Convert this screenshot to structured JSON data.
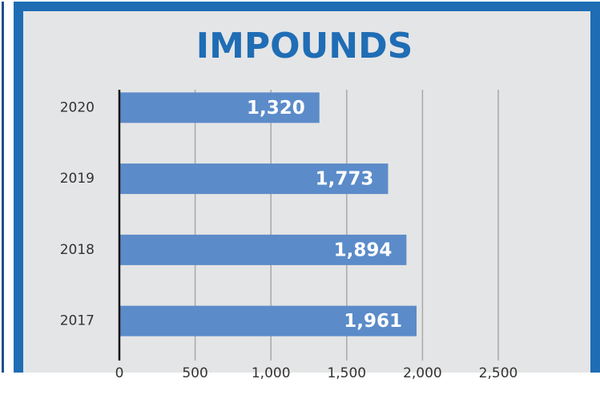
{
  "chart_data": {
    "type": "hbar",
    "title": "IMPOUNDS",
    "categories": [
      "2020",
      "2019",
      "2018",
      "2017"
    ],
    "values": [
      1320,
      1773,
      1894,
      1961
    ],
    "value_labels": [
      "1,320",
      "1,773",
      "1,894",
      "1,961"
    ],
    "color": "#5b8bc9",
    "xlim": [
      0,
      2500
    ],
    "xticks": [
      0,
      500,
      {
        "value": 1000,
        "label": "1,000"
      },
      {
        "value": 1500,
        "label": "1,500"
      },
      {
        "value": 2000,
        "label": "2,000"
      },
      {
        "value": 2500,
        "label": "2,500"
      }
    ],
    "grid": true
  }
}
